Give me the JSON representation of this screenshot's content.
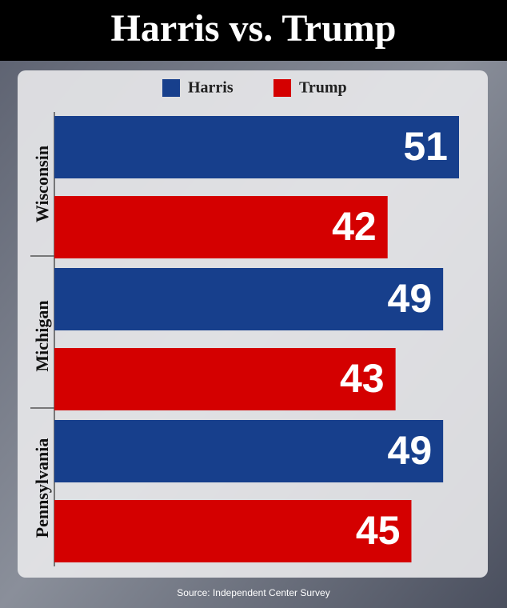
{
  "chart_data": {
    "type": "hbar",
    "title": "Harris vs. Trump",
    "categories": [
      "Wisconsin",
      "Michigan",
      "Pennsylvania"
    ],
    "series": [
      {
        "name": "Harris",
        "color": "#173f8c",
        "values": [
          51,
          49,
          49
        ]
      },
      {
        "name": "Trump",
        "color": "#d40000",
        "values": [
          42,
          43,
          45
        ]
      }
    ],
    "source": "Source: Independent Center Survey"
  }
}
